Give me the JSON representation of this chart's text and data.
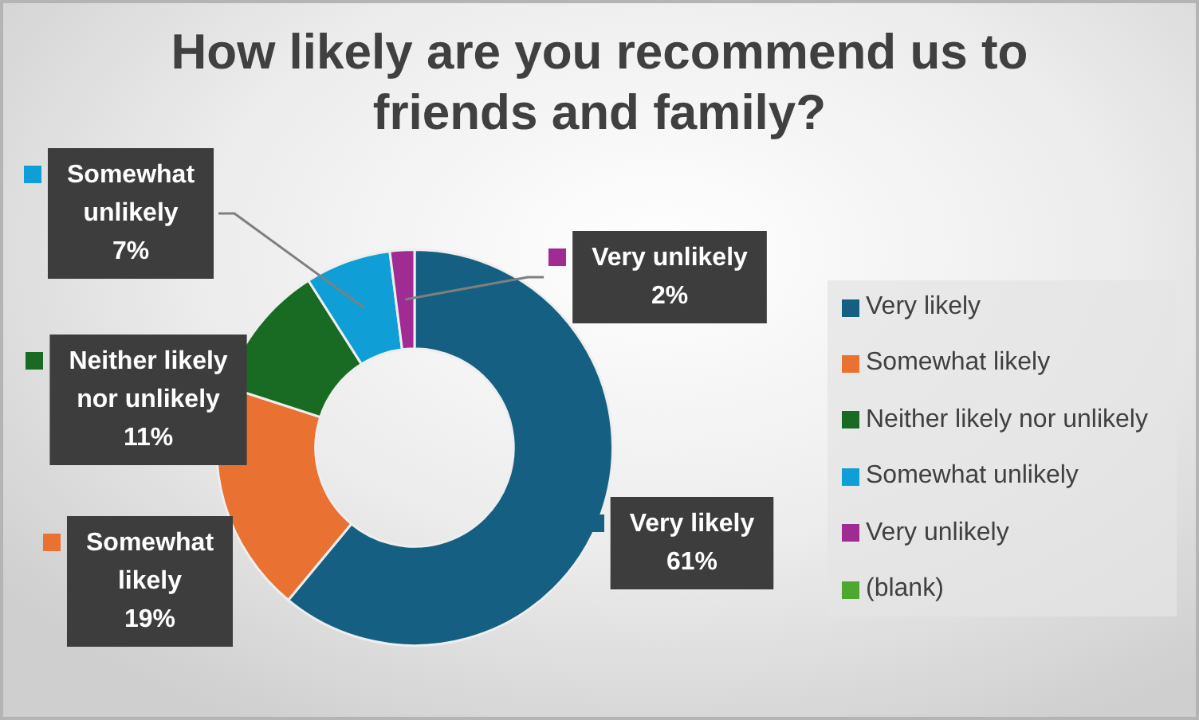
{
  "chart_data": {
    "type": "donut",
    "title": "How likely are you recommend us to friends and family?",
    "categories": [
      "Very likely",
      "Somewhat likely",
      "Neither likely nor unlikely",
      "Somewhat unlikely",
      "Very unlikely",
      "(blank)"
    ],
    "values": [
      61,
      19,
      11,
      7,
      2,
      0
    ],
    "colors": [
      "#156082",
      "#e97132",
      "#196b24",
      "#0f9ed5",
      "#a02b93",
      "#4ea72e"
    ],
    "value_labels": [
      "61%",
      "19%",
      "11%",
      "7%",
      "2%",
      null
    ],
    "legend": "right"
  }
}
